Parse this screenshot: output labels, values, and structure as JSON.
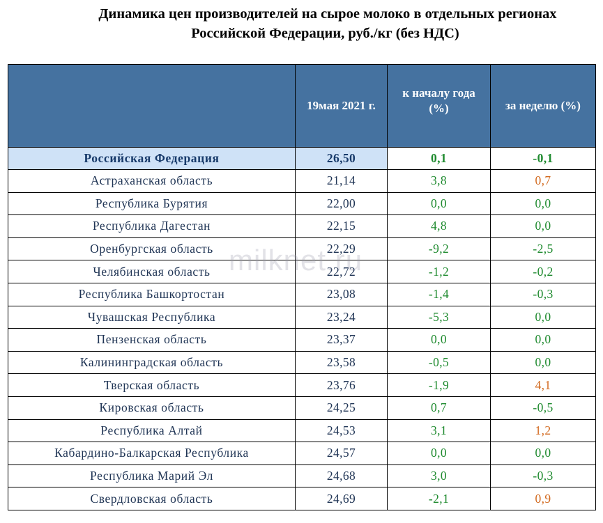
{
  "title": {
    "line1": "Динамика цен производителей на сырое молоко в отдельных  регионах",
    "line2": "Российской Федерации, руб./кг (без НДС)"
  },
  "table": {
    "headers": {
      "region": "",
      "price": "19мая 2021 г.",
      "ytd": "к началу года (%)",
      "week": "за неделю (%)"
    },
    "total": {
      "region": "Российская Федерация",
      "price": "26,50",
      "ytd": "0,1",
      "week": "-0,1",
      "ytd_color": "green",
      "week_color": "green"
    },
    "rows": [
      {
        "region": "Астраханская область",
        "price": "21,14",
        "ytd": "3,8",
        "week": "0,7",
        "ytd_color": "green",
        "week_color": "orange"
      },
      {
        "region": "Республика Бурятия",
        "price": "22,00",
        "ytd": "0,0",
        "week": "0,0",
        "ytd_color": "green",
        "week_color": "green"
      },
      {
        "region": "Республика Дагестан",
        "price": "22,15",
        "ytd": "4,8",
        "week": "0,0",
        "ytd_color": "green",
        "week_color": "green"
      },
      {
        "region": "Оренбургская область",
        "price": "22,29",
        "ytd": "-9,2",
        "week": "-2,5",
        "ytd_color": "green",
        "week_color": "green"
      },
      {
        "region": "Челябинская область",
        "price": "22,72",
        "ytd": "-1,2",
        "week": "-0,2",
        "ytd_color": "green",
        "week_color": "green"
      },
      {
        "region": "Республика Башкортостан",
        "price": "23,08",
        "ytd": "-1,4",
        "week": "-0,3",
        "ytd_color": "green",
        "week_color": "green"
      },
      {
        "region": "Чувашская Республика",
        "price": "23,24",
        "ytd": "-5,3",
        "week": "0,0",
        "ytd_color": "green",
        "week_color": "green"
      },
      {
        "region": "Пензенская область",
        "price": "23,37",
        "ytd": "0,0",
        "week": "0,0",
        "ytd_color": "green",
        "week_color": "green"
      },
      {
        "region": "Калининградская область",
        "price": "23,58",
        "ytd": "-0,5",
        "week": "0,0",
        "ytd_color": "green",
        "week_color": "green"
      },
      {
        "region": "Тверская область",
        "price": "23,76",
        "ytd": "-1,9",
        "week": "4,1",
        "ytd_color": "green",
        "week_color": "orange"
      },
      {
        "region": "Кировская область",
        "price": "24,25",
        "ytd": "0,7",
        "week": "-0,5",
        "ytd_color": "green",
        "week_color": "green"
      },
      {
        "region": "Республика Алтай",
        "price": "24,53",
        "ytd": "3,1",
        "week": "1,2",
        "ytd_color": "green",
        "week_color": "orange"
      },
      {
        "region": "Кабардино-Балкарская Республика",
        "price": "24,57",
        "ytd": "0,0",
        "week": "0,0",
        "ytd_color": "green",
        "week_color": "green"
      },
      {
        "region": "Республика Марий Эл",
        "price": "24,68",
        "ytd": "3,0",
        "week": "-0,3",
        "ytd_color": "green",
        "week_color": "green"
      },
      {
        "region": "Свердловская область",
        "price": "24,69",
        "ytd": "-2,1",
        "week": "0,9",
        "ytd_color": "green",
        "week_color": "orange"
      }
    ]
  },
  "watermark": "milknet.ru",
  "colors": {
    "header_bg": "#4572a0",
    "total_bg": "#cfe2f7",
    "green": "#1e8a2e",
    "orange": "#d2691e"
  }
}
